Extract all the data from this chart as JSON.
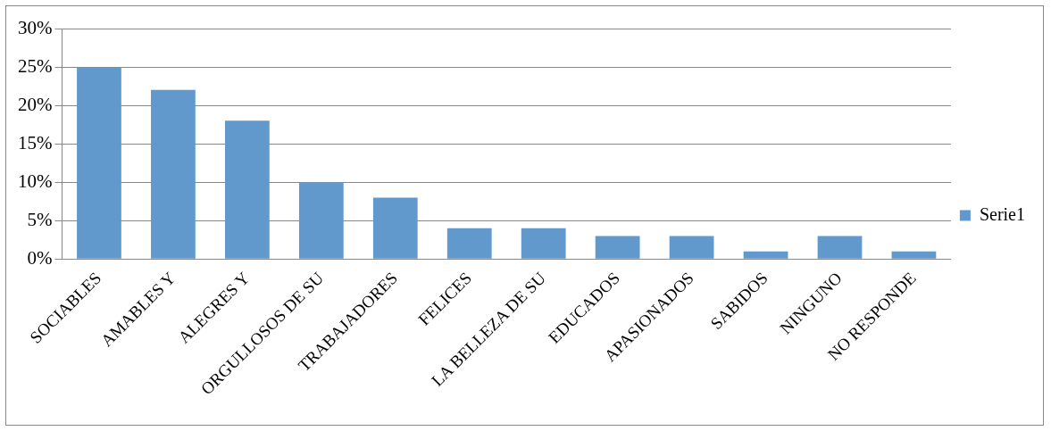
{
  "chart_data": {
    "type": "bar",
    "categories": [
      "SOCIABLES",
      "AMABLES Y",
      "ALEGRES Y",
      "ORGULLOSOS DE SU",
      "TRABAJADORES",
      "FELICES",
      "LA BELLEZA DE SU",
      "EDUCADOS",
      "APASIONADOS",
      "SABIDOS",
      "NINGUNO",
      "NO RESPONDE"
    ],
    "series": [
      {
        "name": "Serie1",
        "color": "#6199cd",
        "values": [
          25,
          22,
          18,
          10,
          8,
          4,
          4,
          3,
          3,
          1,
          3,
          1
        ]
      }
    ],
    "ylim": [
      0,
      30
    ],
    "yticks": [
      {
        "value": 0,
        "label": "0%"
      },
      {
        "value": 5,
        "label": "5%"
      },
      {
        "value": 10,
        "label": "10%"
      },
      {
        "value": 15,
        "label": "15%"
      },
      {
        "value": 20,
        "label": "20%"
      },
      {
        "value": 25,
        "label": "25%"
      },
      {
        "value": 30,
        "label": "30%"
      }
    ],
    "grid": "y",
    "legend": "right"
  }
}
